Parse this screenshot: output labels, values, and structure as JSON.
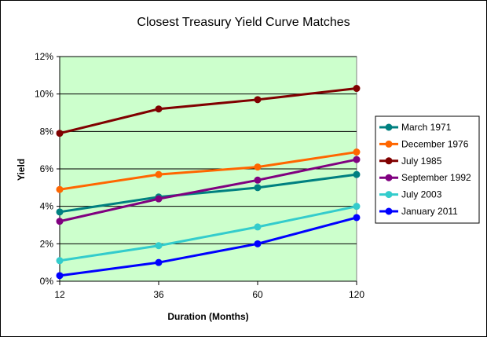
{
  "chart_data": {
    "type": "line",
    "title": "Closest Treasury Yield Curve Matches",
    "xlabel": "Duration (Months)",
    "ylabel": "Yield",
    "categories": [
      "12",
      "36",
      "60",
      "120"
    ],
    "ylim": [
      0,
      12
    ],
    "yticks": [
      "0%",
      "2%",
      "4%",
      "6%",
      "8%",
      "10%",
      "12%"
    ],
    "grid": "horizontal",
    "plot_background": "#ccffcc",
    "legend_position": "right",
    "series": [
      {
        "name": "March 1971",
        "color": "#008080",
        "values": [
          3.7,
          4.5,
          5.0,
          5.7
        ]
      },
      {
        "name": "December 1976",
        "color": "#ff6600",
        "values": [
          4.9,
          5.7,
          6.1,
          6.9
        ]
      },
      {
        "name": "July 1985",
        "color": "#800000",
        "values": [
          7.9,
          9.2,
          9.7,
          10.3
        ]
      },
      {
        "name": "September 1992",
        "color": "#800080",
        "values": [
          3.2,
          4.4,
          5.4,
          6.5
        ]
      },
      {
        "name": "July 2003",
        "color": "#33cccc",
        "values": [
          1.1,
          1.9,
          2.9,
          4.0
        ]
      },
      {
        "name": "January 2011",
        "color": "#0000ff",
        "values": [
          0.3,
          1.0,
          2.0,
          3.4
        ]
      }
    ]
  }
}
